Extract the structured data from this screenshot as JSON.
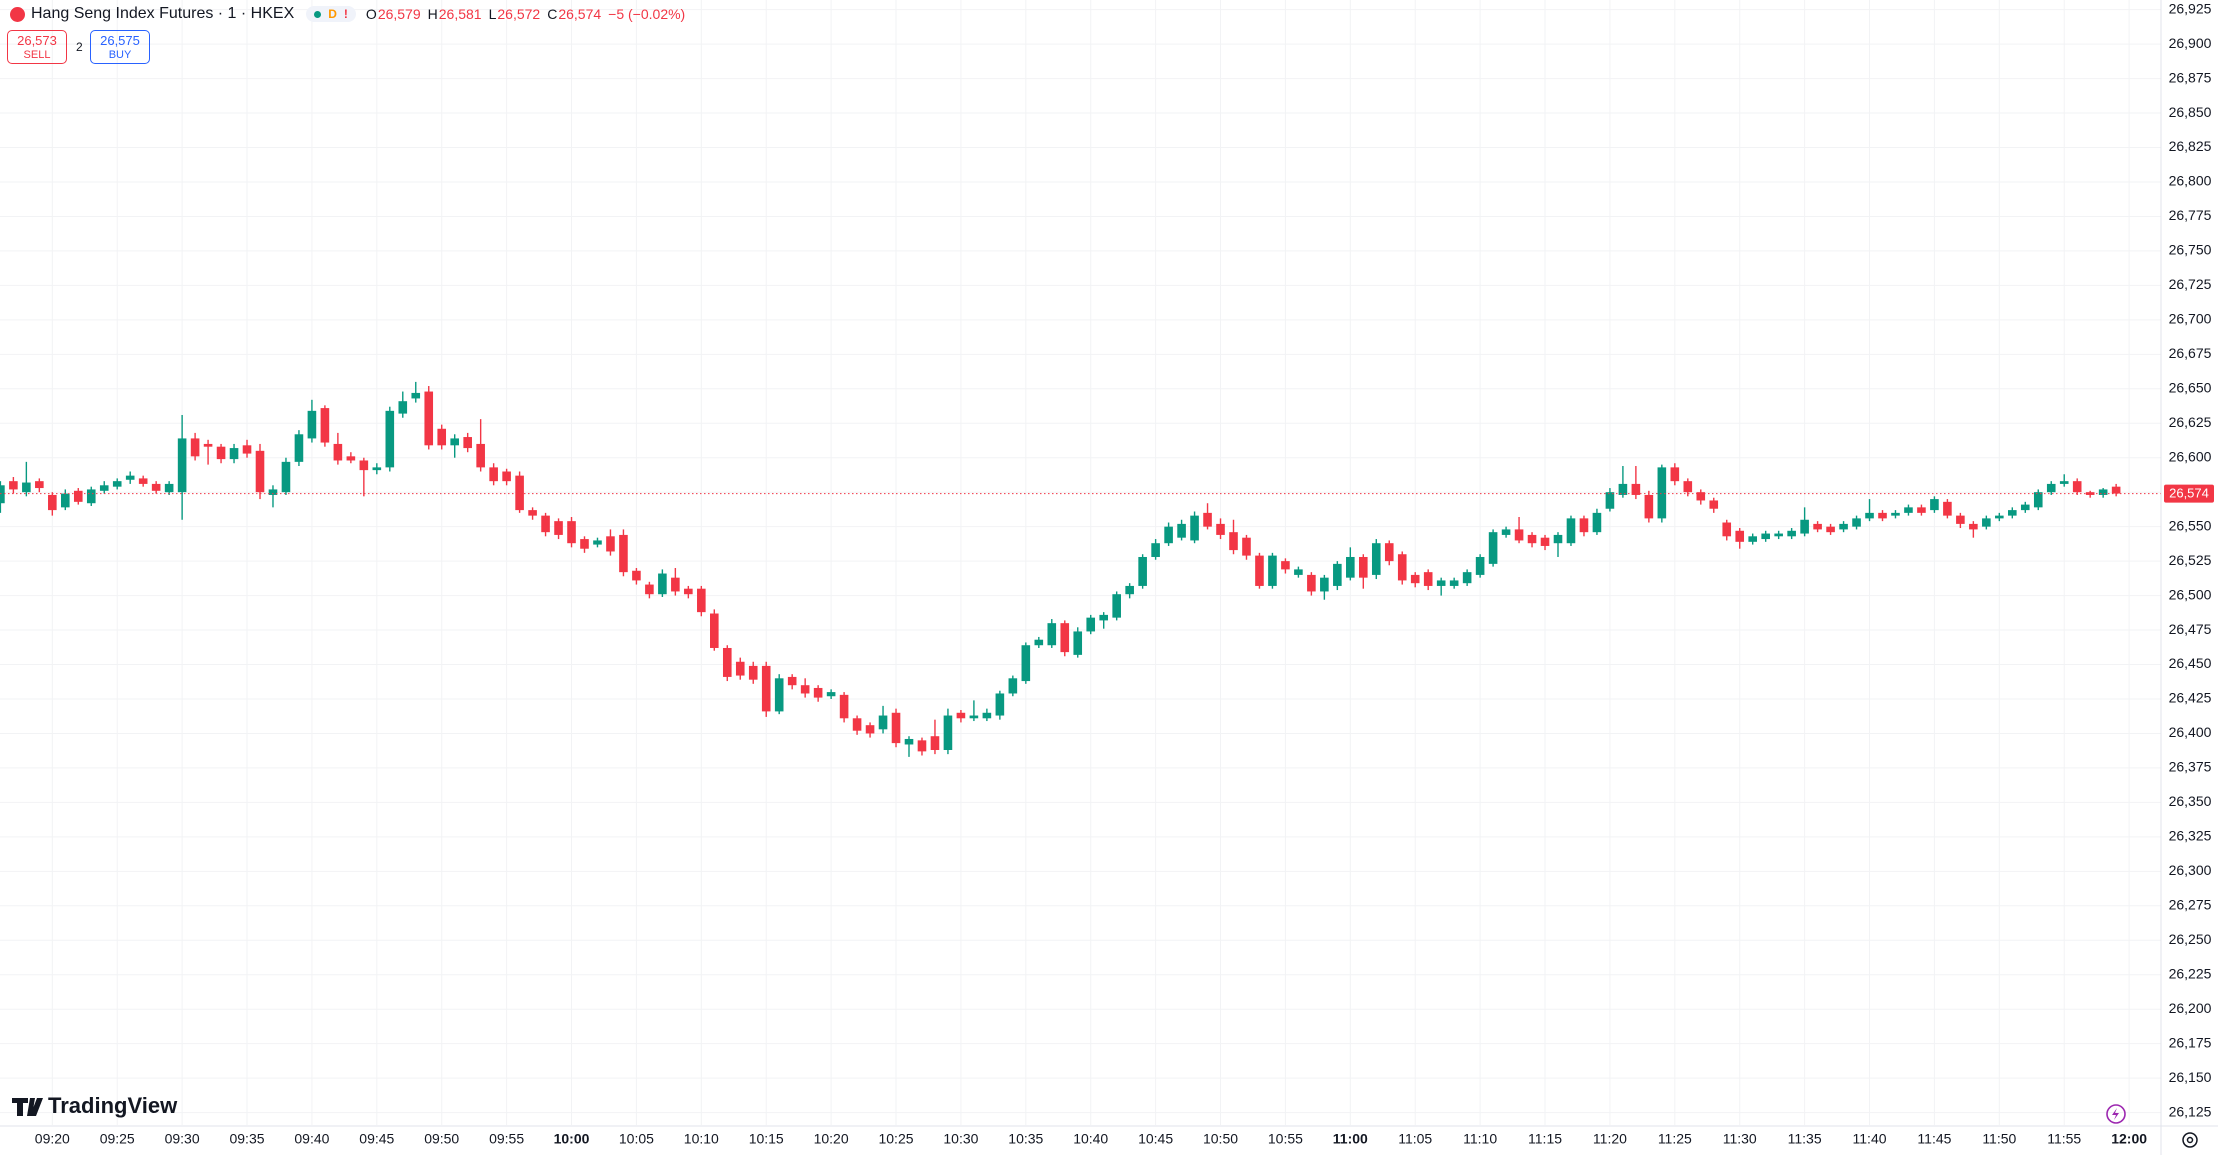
{
  "header": {
    "title": "Hang Seng Index Futures · 1 · HKEX",
    "badge_d": "D",
    "badge_alert": "!",
    "o_label": "O",
    "open": "26,579",
    "h_label": "H",
    "high": "26,581",
    "l_label": "L",
    "low": "26,572",
    "c_label": "C",
    "close": "26,574",
    "change": "−5 (−0.02%)"
  },
  "trade": {
    "sell_price": "26,573",
    "sell_label": "SELL",
    "spread": "2",
    "buy_price": "26,575",
    "buy_label": "BUY"
  },
  "watermark": "TradingView",
  "chart_data": {
    "type": "candlestick",
    "up_color": "#089981",
    "down_color": "#f23645",
    "grid": true,
    "categories": [
      null,
      null,
      null,
      null,
      "09:20",
      null,
      null,
      null,
      null,
      "09:25",
      null,
      null,
      null,
      null,
      "09:30",
      null,
      null,
      null,
      null,
      "09:35",
      null,
      null,
      null,
      null,
      "09:40",
      null,
      null,
      null,
      null,
      "09:45",
      null,
      null,
      null,
      null,
      "09:50",
      null,
      null,
      null,
      null,
      "09:55",
      null,
      null,
      null,
      null,
      "10:00",
      null,
      null,
      null,
      null,
      "10:05",
      null,
      null,
      null,
      null,
      "10:10",
      null,
      null,
      null,
      null,
      "10:15",
      null,
      null,
      null,
      null,
      "10:20",
      null,
      null,
      null,
      null,
      "10:25",
      null,
      null,
      null,
      null,
      "10:30",
      null,
      null,
      null,
      null,
      "10:35",
      null,
      null,
      null,
      null,
      "10:40",
      null,
      null,
      null,
      null,
      "10:45",
      null,
      null,
      null,
      null,
      "10:50",
      null,
      null,
      null,
      null,
      "10:55",
      null,
      null,
      null,
      null,
      "11:00",
      null,
      null,
      null,
      null,
      "11:05",
      null,
      null,
      null,
      null,
      "11:10",
      null,
      null,
      null,
      null,
      "11:15",
      null,
      null,
      null,
      null,
      "11:20",
      null,
      null,
      null,
      null,
      "11:25",
      null,
      null,
      null,
      null,
      "11:30",
      null,
      null,
      null,
      null,
      "11:35",
      null,
      null,
      null,
      null,
      "11:40",
      null,
      null,
      null,
      null,
      "11:45",
      null,
      null,
      null,
      null,
      "11:50",
      null,
      null,
      null,
      null,
      "11:55",
      null,
      null,
      null,
      null,
      "12:00"
    ],
    "open": [
      26567,
      26583,
      26575,
      26583,
      26573,
      26564,
      26576,
      26567,
      26576,
      26579,
      26584,
      26585,
      26581,
      26575,
      26575,
      26614,
      26610,
      26608,
      26599,
      26609,
      26605,
      26573,
      26575,
      26597,
      26614,
      26636,
      26610,
      26601,
      26598,
      26591,
      26593,
      26632,
      26643,
      26648,
      26621,
      26609,
      26615,
      26610,
      26593,
      26590,
      26587,
      26562,
      26558,
      26554,
      26554,
      26541,
      26537,
      26543,
      26544,
      26518,
      26508,
      26501,
      26513,
      26505,
      26505,
      26487,
      26462,
      26452,
      26449,
      26449,
      26416,
      26441,
      26435,
      26433,
      26427,
      26428,
      26411,
      26406,
      26403,
      26415,
      26392,
      26395,
      26398,
      26388,
      26415,
      26411,
      26411,
      26413,
      26429,
      26438,
      26464,
      26464,
      26480,
      26457,
      26474,
      26482,
      26484,
      26501,
      26507,
      26528,
      26538,
      26542,
      26540,
      26560,
      26552,
      26546,
      26542,
      26529,
      26507,
      26525,
      26515,
      26515,
      26503,
      26507,
      26513,
      26528,
      26515,
      26538,
      26530,
      26515,
      26517,
      26507,
      26507,
      26509,
      26515,
      26523,
      26544,
      26548,
      26544,
      26542,
      26538,
      26538,
      26556,
      26546,
      26563,
      26573,
      26581,
      26573,
      26556,
      26593,
      26583,
      26575,
      26569,
      26553,
      26547,
      26539,
      26541,
      26543,
      26543,
      26545,
      26552,
      26550,
      26548,
      26550,
      26556,
      26560,
      26558,
      26560,
      26564,
      26562,
      26568,
      26558,
      26552,
      26550,
      26556,
      26558,
      26562,
      26564,
      26575,
      26581,
      26583,
      26575,
      26573,
      26579,
      null
    ],
    "high": [
      26583,
      26586,
      26597,
      26585,
      26575,
      26577,
      26578,
      26579,
      26583,
      26585,
      26590,
      26587,
      26583,
      26583,
      26631,
      26618,
      26613,
      26610,
      26610,
      26613,
      26610,
      26580,
      26600,
      26620,
      26642,
      26638,
      26618,
      26604,
      26600,
      26596,
      26637,
      26648,
      26655,
      26652,
      26624,
      26617,
      26618,
      26628,
      26596,
      26592,
      26590,
      26564,
      26560,
      26556,
      26557,
      26543,
      26542,
      26548,
      26548,
      26520,
      26510,
      26519,
      26520,
      26507,
      26507,
      26490,
      26464,
      26455,
      26452,
      26452,
      26443,
      26443,
      26440,
      26435,
      26432,
      26430,
      26413,
      26408,
      26420,
      26418,
      26398,
      26397,
      26410,
      26418,
      26417,
      26424,
      26418,
      26431,
      26442,
      26466,
      26470,
      26483,
      26482,
      26477,
      26486,
      26488,
      26503,
      26509,
      26530,
      26541,
      26553,
      26555,
      26561,
      26567,
      26556,
      26555,
      26544,
      26531,
      26531,
      26527,
      26521,
      26517,
      26515,
      26525,
      26535,
      26530,
      26541,
      26540,
      26532,
      26517,
      26519,
      26513,
      26513,
      26519,
      26530,
      26548,
      26550,
      26557,
      26546,
      26544,
      26546,
      26558,
      26558,
      26563,
      26578,
      26594,
      26594,
      26576,
      26595,
      26596,
      26585,
      26577,
      26571,
      26555,
      26549,
      26545,
      26547,
      26547,
      26549,
      26564,
      26554,
      26552,
      26554,
      26558,
      26570,
      26562,
      26562,
      26566,
      26566,
      26572,
      26570,
      26560,
      26554,
      26558,
      26560,
      26564,
      26568,
      26577,
      26583,
      26588,
      26585,
      26576,
      26578,
      26581,
      null
    ],
    "low": [
      26560,
      26574,
      26572,
      26575,
      26558,
      26562,
      26566,
      26565,
      26574,
      26577,
      26581,
      26579,
      26574,
      26573,
      26555,
      26598,
      26595,
      26596,
      26596,
      26600,
      26570,
      26564,
      26573,
      26594,
      26611,
      26608,
      26595,
      26596,
      26572,
      26588,
      26590,
      26629,
      26640,
      26606,
      26606,
      26600,
      26604,
      26590,
      26580,
      26580,
      26560,
      26555,
      26543,
      26541,
      26535,
      26531,
      26535,
      26529,
      26514,
      26508,
      26498,
      26499,
      26500,
      26498,
      26485,
      26460,
      26438,
      26439,
      26436,
      26412,
      26414,
      26432,
      26426,
      26423,
      26425,
      26408,
      26399,
      26397,
      26400,
      26390,
      26383,
      26384,
      26385,
      26385,
      26408,
      26409,
      26409,
      26410,
      26427,
      26436,
      26462,
      26462,
      26456,
      26455,
      26472,
      26476,
      26482,
      26498,
      26505,
      26526,
      26536,
      26540,
      26538,
      26548,
      26541,
      26530,
      26526,
      26505,
      26505,
      26516,
      26513,
      26500,
      26497,
      26504,
      26511,
      26505,
      26512,
      26522,
      26508,
      26506,
      26504,
      26500,
      26505,
      26507,
      26513,
      26521,
      26542,
      26538,
      26535,
      26533,
      26528,
      26536,
      26543,
      26544,
      26561,
      26571,
      26570,
      26553,
      26553,
      26580,
      26572,
      26566,
      26560,
      26540,
      26534,
      26537,
      26539,
      26541,
      26541,
      26543,
      26546,
      26544,
      26546,
      26548,
      26554,
      26554,
      26556,
      26558,
      26558,
      26560,
      26556,
      26549,
      26542,
      26548,
      26554,
      26556,
      26560,
      26562,
      26573,
      26579,
      26573,
      26571,
      26571,
      26572,
      null
    ],
    "close": [
      26580,
      26577,
      26582,
      26578,
      26562,
      26574,
      26568,
      26577,
      26580,
      26583,
      26587,
      26581,
      26576,
      26581,
      26614,
      26601,
      26608,
      26599,
      26607,
      26603,
      26575,
      26577,
      26597,
      26617,
      26634,
      26611,
      26598,
      26598,
      26591,
      26593,
      26634,
      26641,
      26647,
      26609,
      26609,
      26614,
      26607,
      26593,
      26583,
      26583,
      26562,
      26558,
      26546,
      26544,
      26538,
      26534,
      26540,
      26532,
      26517,
      26511,
      26501,
      26516,
      26503,
      26501,
      26488,
      26462,
      26441,
      26442,
      26439,
      26416,
      26440,
      26435,
      26429,
      26426,
      26430,
      26411,
      26402,
      26400,
      26413,
      26393,
      26396,
      26387,
      26388,
      26413,
      26411,
      26413,
      26415,
      26429,
      26440,
      26464,
      26468,
      26480,
      26459,
      26474,
      26484,
      26486,
      26501,
      26507,
      26528,
      26538,
      26550,
      26552,
      26558,
      26550,
      26544,
      26533,
      26529,
      26507,
      26529,
      26519,
      26519,
      26503,
      26513,
      26523,
      26528,
      26513,
      26538,
      26525,
      26511,
      26509,
      26507,
      26511,
      26511,
      26517,
      26528,
      26546,
      26548,
      26540,
      26538,
      26536,
      26544,
      26556,
      26546,
      26560,
      26575,
      26581,
      26573,
      26556,
      26593,
      26583,
      26575,
      26569,
      26563,
      26543,
      26539,
      26543,
      26545,
      26545,
      26547,
      26555,
      26548,
      26546,
      26552,
      26556,
      26560,
      26556,
      26560,
      26564,
      26560,
      26570,
      26558,
      26552,
      26548,
      26556,
      26558,
      26562,
      26566,
      26575,
      26581,
      26583,
      26575,
      26573,
      26577,
      26574,
      null
    ],
    "ylim": [
      26116,
      26932
    ],
    "yticks": [
      {
        "value": 26125,
        "label": "26,125"
      },
      {
        "value": 26150,
        "label": "26,150"
      },
      {
        "value": 26175,
        "label": "26,175"
      },
      {
        "value": 26200,
        "label": "26,200"
      },
      {
        "value": 26225,
        "label": "26,225"
      },
      {
        "value": 26250,
        "label": "26,250"
      },
      {
        "value": 26275,
        "label": "26,275"
      },
      {
        "value": 26300,
        "label": "26,300"
      },
      {
        "value": 26325,
        "label": "26,325"
      },
      {
        "value": 26350,
        "label": "26,350"
      },
      {
        "value": 26375,
        "label": "26,375"
      },
      {
        "value": 26400,
        "label": "26,400"
      },
      {
        "value": 26425,
        "label": "26,425"
      },
      {
        "value": 26450,
        "label": "26,450"
      },
      {
        "value": 26475,
        "label": "26,475"
      },
      {
        "value": 26500,
        "label": "26,500"
      },
      {
        "value": 26525,
        "label": "26,525"
      },
      {
        "value": 26550,
        "label": "26,550"
      },
      {
        "value": 26575,
        "label": "26,575"
      },
      {
        "value": 26600,
        "label": "26,600"
      },
      {
        "value": 26625,
        "label": "26,625"
      },
      {
        "value": 26650,
        "label": "26,650"
      },
      {
        "value": 26675,
        "label": "26,675"
      },
      {
        "value": 26700,
        "label": "26,700"
      },
      {
        "value": 26725,
        "label": "26,725"
      },
      {
        "value": 26750,
        "label": "26,750"
      },
      {
        "value": 26775,
        "label": "26,775"
      },
      {
        "value": 26800,
        "label": "26,800"
      },
      {
        "value": 26825,
        "label": "26,825"
      },
      {
        "value": 26850,
        "label": "26,850"
      },
      {
        "value": 26875,
        "label": "26,875"
      },
      {
        "value": 26900,
        "label": "26,900"
      },
      {
        "value": 26925,
        "label": "26,925"
      }
    ],
    "last_price": {
      "value": 26574,
      "label": "26,574"
    }
  }
}
